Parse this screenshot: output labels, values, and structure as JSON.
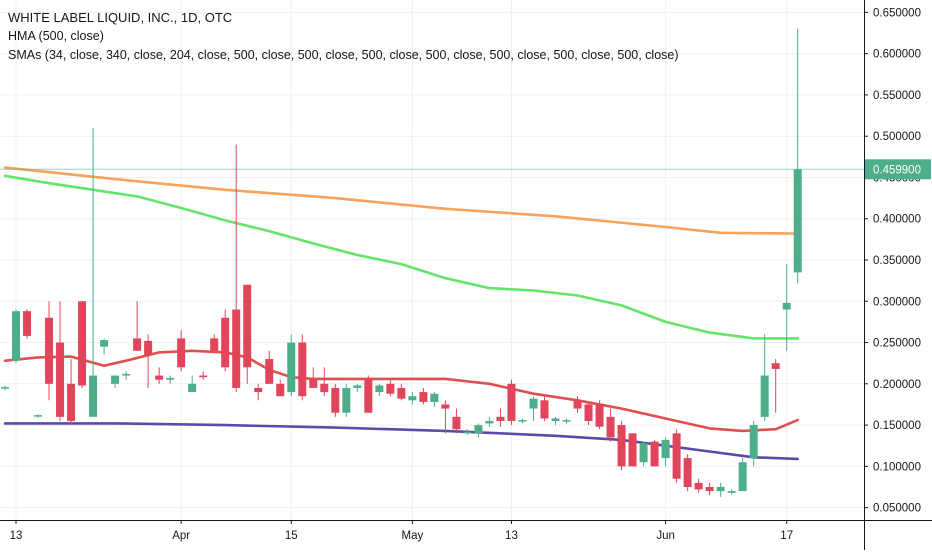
{
  "header": {
    "title": "WHITE LABEL LIQUID, INC., 1D, OTC",
    "indicator_hma": "HMA (500, close)",
    "indicator_smas": "SMAs (34, close, 340, close, 204, close, 500, close, 500, close, 500, close, 500, close, 500, close, 500, close, 500, close)"
  },
  "colors": {
    "up": "#4caf8a",
    "down": "#e0455b",
    "sma_orange": "#f7a35c",
    "sma_green": "#66e36a",
    "sma_red": "#e04f4f",
    "hma_purple": "#5b4ba8",
    "price_tag": "#4caf8a",
    "grid": "#eef0f3"
  },
  "chart_data": {
    "type": "candlestick",
    "ylim": [
      0.035,
      0.665
    ],
    "y_ticks": [
      "0.650000",
      "0.600000",
      "0.550000",
      "0.500000",
      "0.450000",
      "0.400000",
      "0.350000",
      "0.300000",
      "0.250000",
      "0.200000",
      "0.150000",
      "0.100000",
      "0.050000"
    ],
    "x_ticks": [
      {
        "label": "13",
        "index": 1
      },
      {
        "label": "Apr",
        "index": 16
      },
      {
        "label": "15",
        "index": 26
      },
      {
        "label": "May",
        "index": 37
      },
      {
        "label": "13",
        "index": 46
      },
      {
        "label": "Jun",
        "index": 60
      },
      {
        "label": "17",
        "index": 71
      }
    ],
    "last_price": {
      "label": "0.459900",
      "value": 0.4599
    },
    "candles": [
      {
        "o": 0.195,
        "h": 0.198,
        "l": 0.192,
        "c": 0.196
      },
      {
        "o": 0.228,
        "h": 0.29,
        "l": 0.225,
        "c": 0.288
      },
      {
        "o": 0.288,
        "h": 0.29,
        "l": 0.255,
        "c": 0.258
      },
      {
        "o": 0.161,
        "h": 0.163,
        "l": 0.159,
        "c": 0.162
      },
      {
        "o": 0.28,
        "h": 0.3,
        "l": 0.18,
        "c": 0.2
      },
      {
        "o": 0.25,
        "h": 0.3,
        "l": 0.155,
        "c": 0.16
      },
      {
        "o": 0.2,
        "h": 0.23,
        "l": 0.15,
        "c": 0.155
      },
      {
        "o": 0.3,
        "h": 0.3,
        "l": 0.195,
        "c": 0.198
      },
      {
        "o": 0.16,
        "h": 0.51,
        "l": 0.16,
        "c": 0.21
      },
      {
        "o": 0.245,
        "h": 0.255,
        "l": 0.235,
        "c": 0.253
      },
      {
        "o": 0.2,
        "h": 0.21,
        "l": 0.195,
        "c": 0.21
      },
      {
        "o": 0.21,
        "h": 0.215,
        "l": 0.205,
        "c": 0.212
      },
      {
        "o": 0.255,
        "h": 0.3,
        "l": 0.24,
        "c": 0.24
      },
      {
        "o": 0.252,
        "h": 0.26,
        "l": 0.195,
        "c": 0.235
      },
      {
        "o": 0.21,
        "h": 0.22,
        "l": 0.2,
        "c": 0.205
      },
      {
        "o": 0.205,
        "h": 0.21,
        "l": 0.2,
        "c": 0.207
      },
      {
        "o": 0.255,
        "h": 0.265,
        "l": 0.215,
        "c": 0.22
      },
      {
        "o": 0.19,
        "h": 0.21,
        "l": 0.19,
        "c": 0.2
      },
      {
        "o": 0.21,
        "h": 0.215,
        "l": 0.205,
        "c": 0.208
      },
      {
        "o": 0.255,
        "h": 0.26,
        "l": 0.24,
        "c": 0.24
      },
      {
        "o": 0.28,
        "h": 0.29,
        "l": 0.215,
        "c": 0.22
      },
      {
        "o": 0.29,
        "h": 0.49,
        "l": 0.19,
        "c": 0.195
      },
      {
        "o": 0.32,
        "h": 0.32,
        "l": 0.2,
        "c": 0.22
      },
      {
        "o": 0.195,
        "h": 0.2,
        "l": 0.18,
        "c": 0.19
      },
      {
        "o": 0.23,
        "h": 0.24,
        "l": 0.2,
        "c": 0.2
      },
      {
        "o": 0.2,
        "h": 0.205,
        "l": 0.185,
        "c": 0.185
      },
      {
        "o": 0.19,
        "h": 0.26,
        "l": 0.185,
        "c": 0.25
      },
      {
        "o": 0.25,
        "h": 0.26,
        "l": 0.18,
        "c": 0.185
      },
      {
        "o": 0.205,
        "h": 0.22,
        "l": 0.195,
        "c": 0.195
      },
      {
        "o": 0.2,
        "h": 0.22,
        "l": 0.185,
        "c": 0.19
      },
      {
        "o": 0.195,
        "h": 0.2,
        "l": 0.16,
        "c": 0.165
      },
      {
        "o": 0.165,
        "h": 0.2,
        "l": 0.16,
        "c": 0.195
      },
      {
        "o": 0.195,
        "h": 0.2,
        "l": 0.19,
        "c": 0.198
      },
      {
        "o": 0.205,
        "h": 0.21,
        "l": 0.165,
        "c": 0.165
      },
      {
        "o": 0.19,
        "h": 0.2,
        "l": 0.185,
        "c": 0.198
      },
      {
        "o": 0.2,
        "h": 0.205,
        "l": 0.185,
        "c": 0.188
      },
      {
        "o": 0.195,
        "h": 0.2,
        "l": 0.18,
        "c": 0.182
      },
      {
        "o": 0.18,
        "h": 0.19,
        "l": 0.175,
        "c": 0.185
      },
      {
        "o": 0.19,
        "h": 0.195,
        "l": 0.175,
        "c": 0.178
      },
      {
        "o": 0.178,
        "h": 0.19,
        "l": 0.172,
        "c": 0.188
      },
      {
        "o": 0.175,
        "h": 0.18,
        "l": 0.14,
        "c": 0.17
      },
      {
        "o": 0.16,
        "h": 0.17,
        "l": 0.14,
        "c": 0.145
      },
      {
        "o": 0.14,
        "h": 0.145,
        "l": 0.138,
        "c": 0.142
      },
      {
        "o": 0.14,
        "h": 0.152,
        "l": 0.135,
        "c": 0.15
      },
      {
        "o": 0.152,
        "h": 0.16,
        "l": 0.148,
        "c": 0.155
      },
      {
        "o": 0.16,
        "h": 0.17,
        "l": 0.148,
        "c": 0.155
      },
      {
        "o": 0.2,
        "h": 0.205,
        "l": 0.15,
        "c": 0.155
      },
      {
        "o": 0.155,
        "h": 0.158,
        "l": 0.152,
        "c": 0.156
      },
      {
        "o": 0.17,
        "h": 0.185,
        "l": 0.155,
        "c": 0.182
      },
      {
        "o": 0.18,
        "h": 0.185,
        "l": 0.155,
        "c": 0.158
      },
      {
        "o": 0.155,
        "h": 0.16,
        "l": 0.15,
        "c": 0.158
      },
      {
        "o": 0.155,
        "h": 0.158,
        "l": 0.152,
        "c": 0.156
      },
      {
        "o": 0.18,
        "h": 0.185,
        "l": 0.165,
        "c": 0.17
      },
      {
        "o": 0.175,
        "h": 0.178,
        "l": 0.15,
        "c": 0.155
      },
      {
        "o": 0.175,
        "h": 0.18,
        "l": 0.145,
        "c": 0.148
      },
      {
        "o": 0.16,
        "h": 0.17,
        "l": 0.13,
        "c": 0.135
      },
      {
        "o": 0.15,
        "h": 0.155,
        "l": 0.095,
        "c": 0.1
      },
      {
        "o": 0.14,
        "h": 0.14,
        "l": 0.1,
        "c": 0.1
      },
      {
        "o": 0.105,
        "h": 0.13,
        "l": 0.1,
        "c": 0.128
      },
      {
        "o": 0.13,
        "h": 0.132,
        "l": 0.1,
        "c": 0.1
      },
      {
        "o": 0.11,
        "h": 0.135,
        "l": 0.1,
        "c": 0.132
      },
      {
        "o": 0.14,
        "h": 0.145,
        "l": 0.08,
        "c": 0.085
      },
      {
        "o": 0.11,
        "h": 0.115,
        "l": 0.07,
        "c": 0.075
      },
      {
        "o": 0.08,
        "h": 0.085,
        "l": 0.068,
        "c": 0.072
      },
      {
        "o": 0.075,
        "h": 0.08,
        "l": 0.065,
        "c": 0.07
      },
      {
        "o": 0.07,
        "h": 0.08,
        "l": 0.063,
        "c": 0.075
      },
      {
        "o": 0.068,
        "h": 0.072,
        "l": 0.066,
        "c": 0.07
      },
      {
        "o": 0.07,
        "h": 0.11,
        "l": 0.07,
        "c": 0.105
      },
      {
        "o": 0.11,
        "h": 0.155,
        "l": 0.1,
        "c": 0.15
      },
      {
        "o": 0.16,
        "h": 0.26,
        "l": 0.155,
        "c": 0.21
      },
      {
        "o": 0.225,
        "h": 0.23,
        "l": 0.165,
        "c": 0.218
      },
      {
        "o": 0.29,
        "h": 0.345,
        "l": 0.24,
        "c": 0.298
      },
      {
        "o": 0.335,
        "h": 0.63,
        "l": 0.322,
        "c": 0.4599
      }
    ],
    "series": [
      {
        "color": "#f7a35c",
        "x": [
          0,
          10,
          20,
          30,
          40,
          50,
          60,
          65,
          72
        ],
        "y": [
          0.462,
          0.448,
          0.435,
          0.425,
          0.412,
          0.403,
          0.39,
          0.383,
          0.382
        ]
      },
      {
        "color": "#66e36a",
        "x": [
          0,
          4,
          8,
          12,
          16,
          20,
          24,
          28,
          32,
          36,
          40,
          44,
          48,
          52,
          56,
          60,
          64,
          68,
          72
        ],
        "y": [
          0.452,
          0.443,
          0.435,
          0.427,
          0.413,
          0.398,
          0.385,
          0.37,
          0.356,
          0.345,
          0.328,
          0.316,
          0.313,
          0.307,
          0.295,
          0.275,
          0.262,
          0.255,
          0.255
        ]
      },
      {
        "color": "#e04f4f",
        "x": [
          0,
          3,
          6,
          9,
          11,
          14,
          17,
          20,
          22,
          24,
          26,
          28,
          32,
          36,
          40,
          44,
          48,
          52,
          56,
          60,
          64,
          67,
          70,
          72
        ],
        "y": [
          0.228,
          0.232,
          0.233,
          0.222,
          0.228,
          0.238,
          0.24,
          0.238,
          0.232,
          0.217,
          0.208,
          0.206,
          0.206,
          0.206,
          0.206,
          0.2,
          0.188,
          0.18,
          0.17,
          0.158,
          0.146,
          0.143,
          0.145,
          0.156
        ]
      },
      {
        "color": "#5b4ba8",
        "x": [
          0,
          10,
          20,
          30,
          40,
          50,
          56,
          60,
          64,
          68,
          72
        ],
        "y": [
          0.152,
          0.152,
          0.15,
          0.147,
          0.143,
          0.137,
          0.132,
          0.125,
          0.118,
          0.111,
          0.109
        ]
      }
    ]
  }
}
